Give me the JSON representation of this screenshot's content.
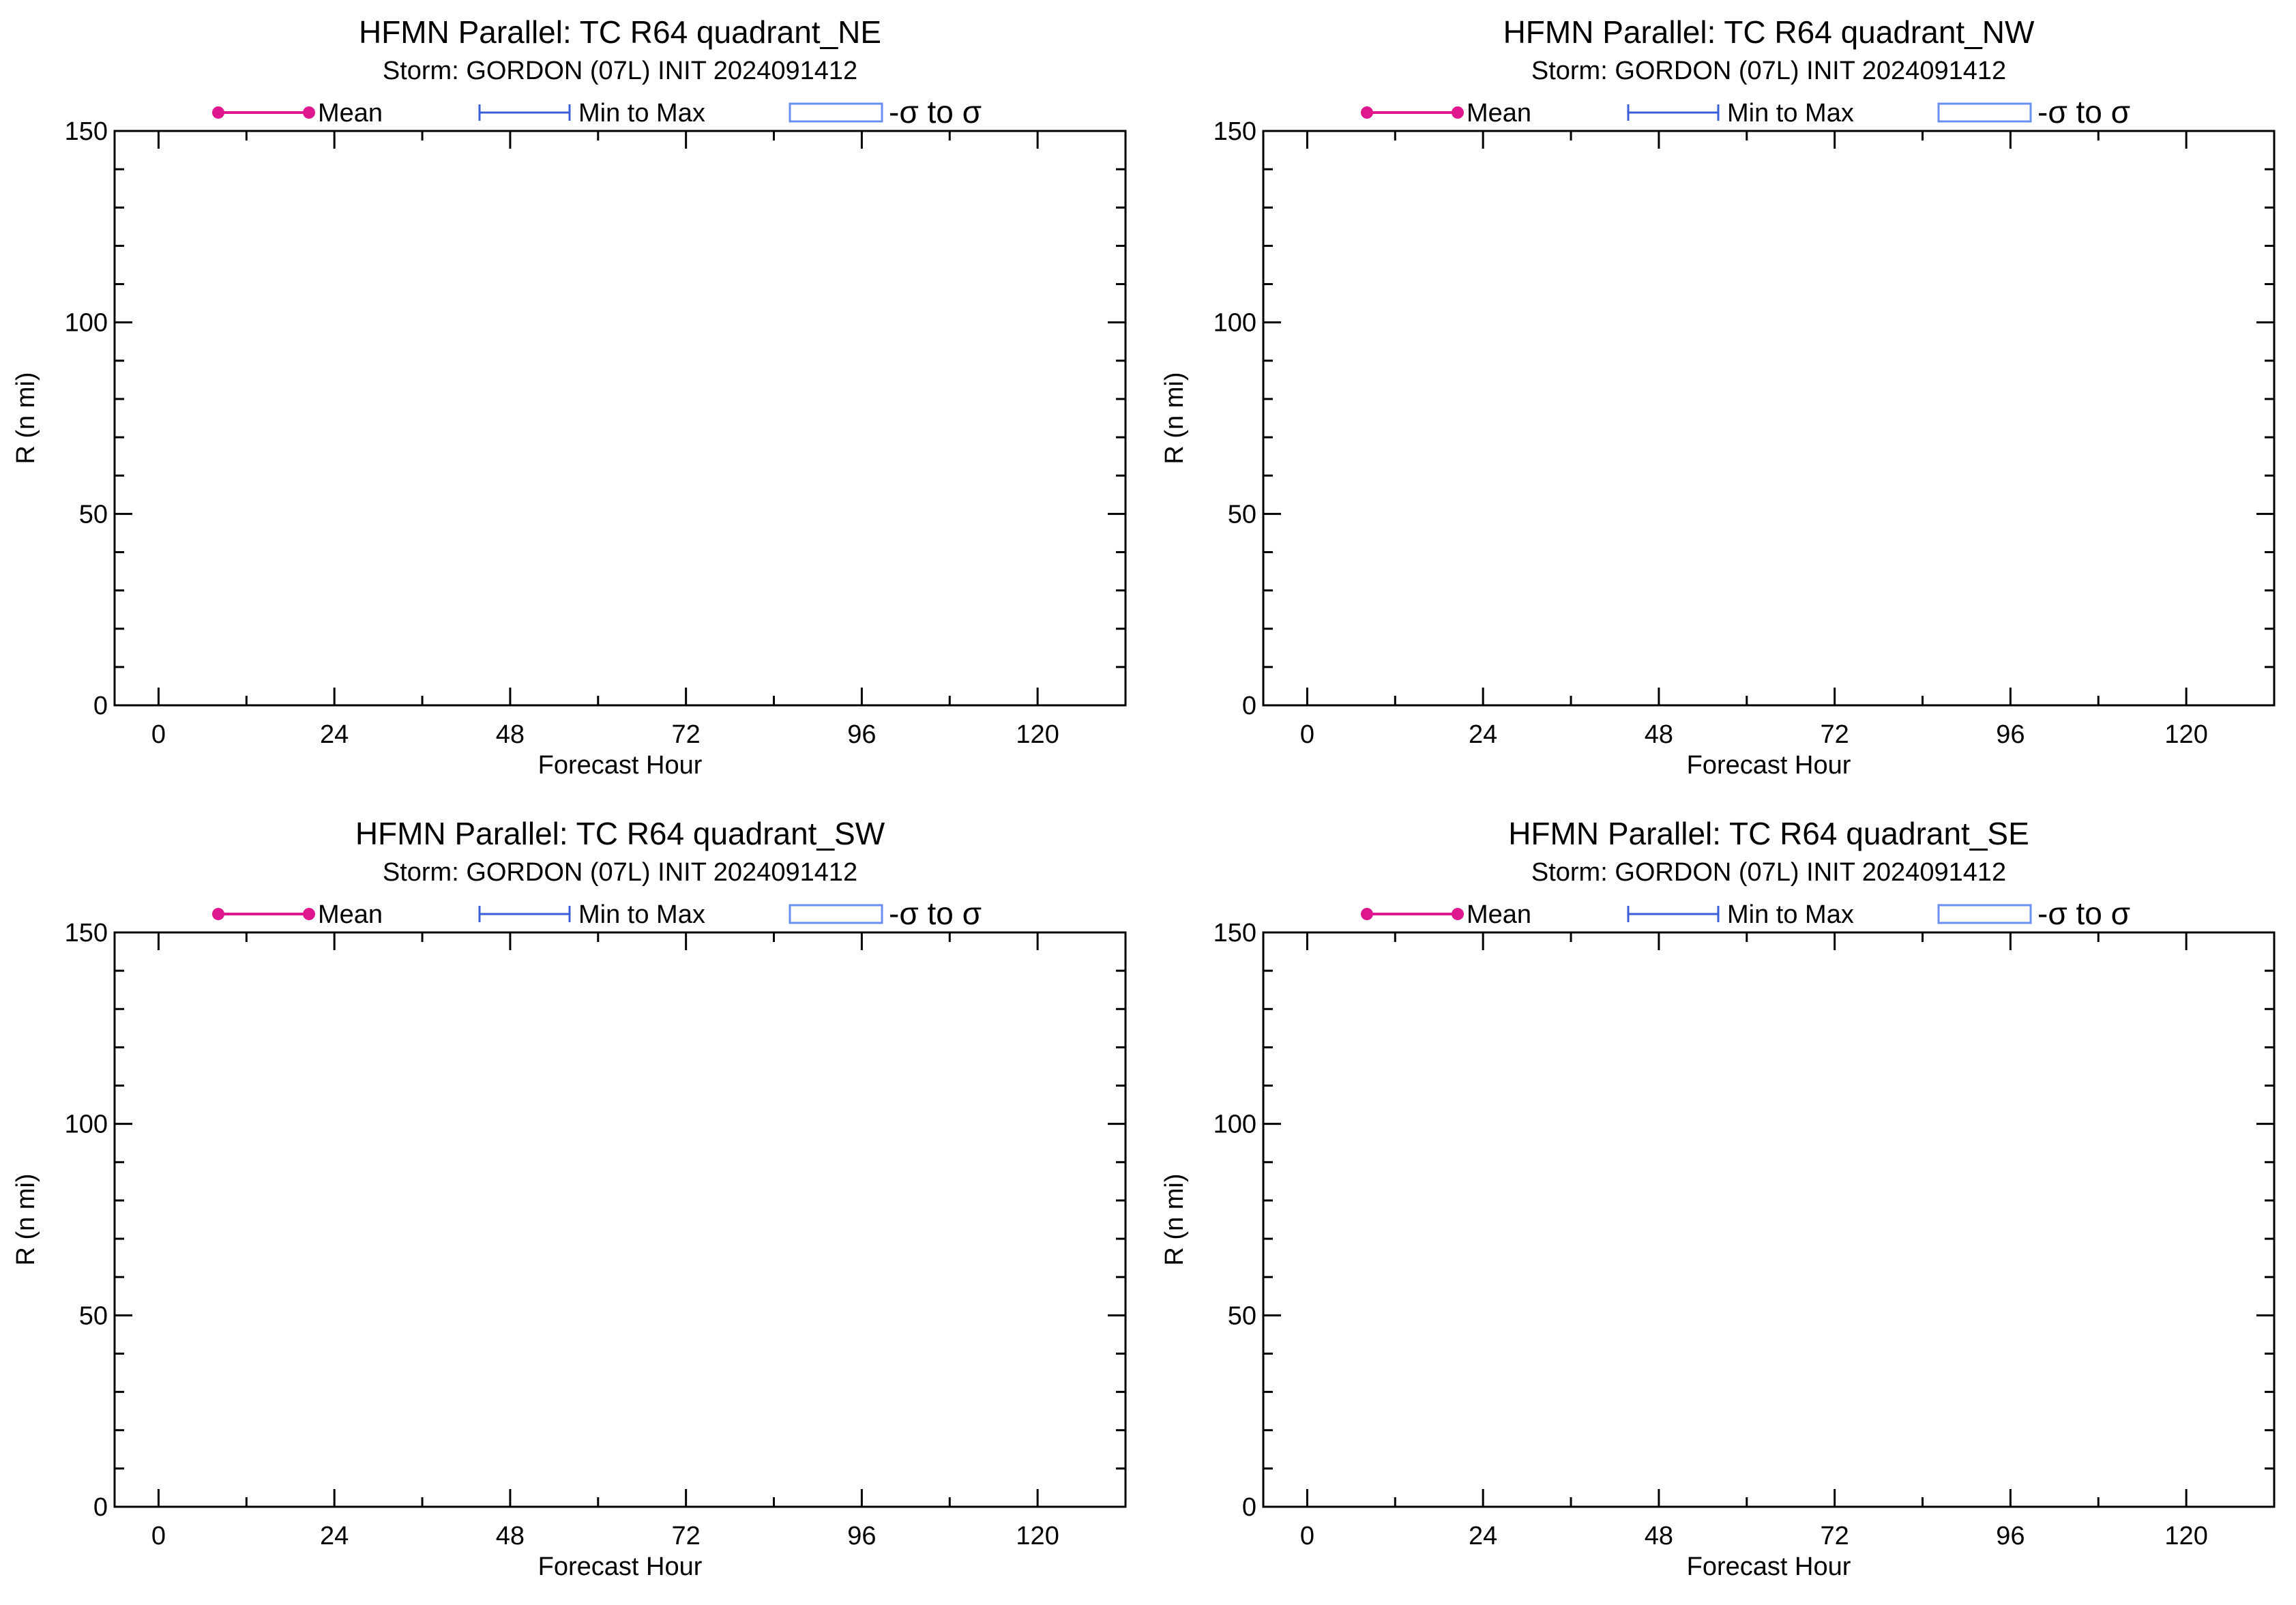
{
  "legend": {
    "mean_label": "Mean",
    "minmax_label": "Min to Max",
    "sigma_label": "-σ to σ",
    "colors": {
      "mean": "#e0168e",
      "minmax": "#3a5fd8",
      "sigma": "#6a8ff0"
    }
  },
  "chart_data": [
    {
      "type": "line",
      "title": "HFMN Parallel: TC  R64 quadrant_NE",
      "subtitle": "Storm: GORDON (07L) INIT 2024091412",
      "xlabel": "Forecast Hour",
      "ylabel": "R (n mi)",
      "xlim": [
        -6,
        132
      ],
      "ylim": [
        0,
        150
      ],
      "xticks": [
        0,
        24,
        48,
        72,
        96,
        120
      ],
      "yticks": [
        0,
        50,
        100,
        150
      ],
      "grid": false,
      "legend_position": "top",
      "series": []
    },
    {
      "type": "line",
      "title": "HFMN Parallel: TC  R64 quadrant_NW",
      "subtitle": "Storm: GORDON (07L) INIT 2024091412",
      "xlabel": "Forecast Hour",
      "ylabel": "R (n mi)",
      "xlim": [
        -6,
        132
      ],
      "ylim": [
        0,
        150
      ],
      "xticks": [
        0,
        24,
        48,
        72,
        96,
        120
      ],
      "yticks": [
        0,
        50,
        100,
        150
      ],
      "grid": false,
      "legend_position": "top",
      "series": []
    },
    {
      "type": "line",
      "title": "HFMN Parallel: TC  R64 quadrant_SW",
      "subtitle": "Storm: GORDON (07L) INIT 2024091412",
      "xlabel": "Forecast Hour",
      "ylabel": "R (n mi)",
      "xlim": [
        -6,
        132
      ],
      "ylim": [
        0,
        150
      ],
      "xticks": [
        0,
        24,
        48,
        72,
        96,
        120
      ],
      "yticks": [
        0,
        50,
        100,
        150
      ],
      "grid": false,
      "legend_position": "top",
      "series": []
    },
    {
      "type": "line",
      "title": "HFMN Parallel: TC  R64 quadrant_SE",
      "subtitle": "Storm: GORDON (07L) INIT 2024091412",
      "xlabel": "Forecast Hour",
      "ylabel": "R (n mi)",
      "xlim": [
        -6,
        132
      ],
      "ylim": [
        0,
        150
      ],
      "xticks": [
        0,
        24,
        48,
        72,
        96,
        120
      ],
      "yticks": [
        0,
        50,
        100,
        150
      ],
      "grid": false,
      "legend_position": "top",
      "series": []
    }
  ]
}
